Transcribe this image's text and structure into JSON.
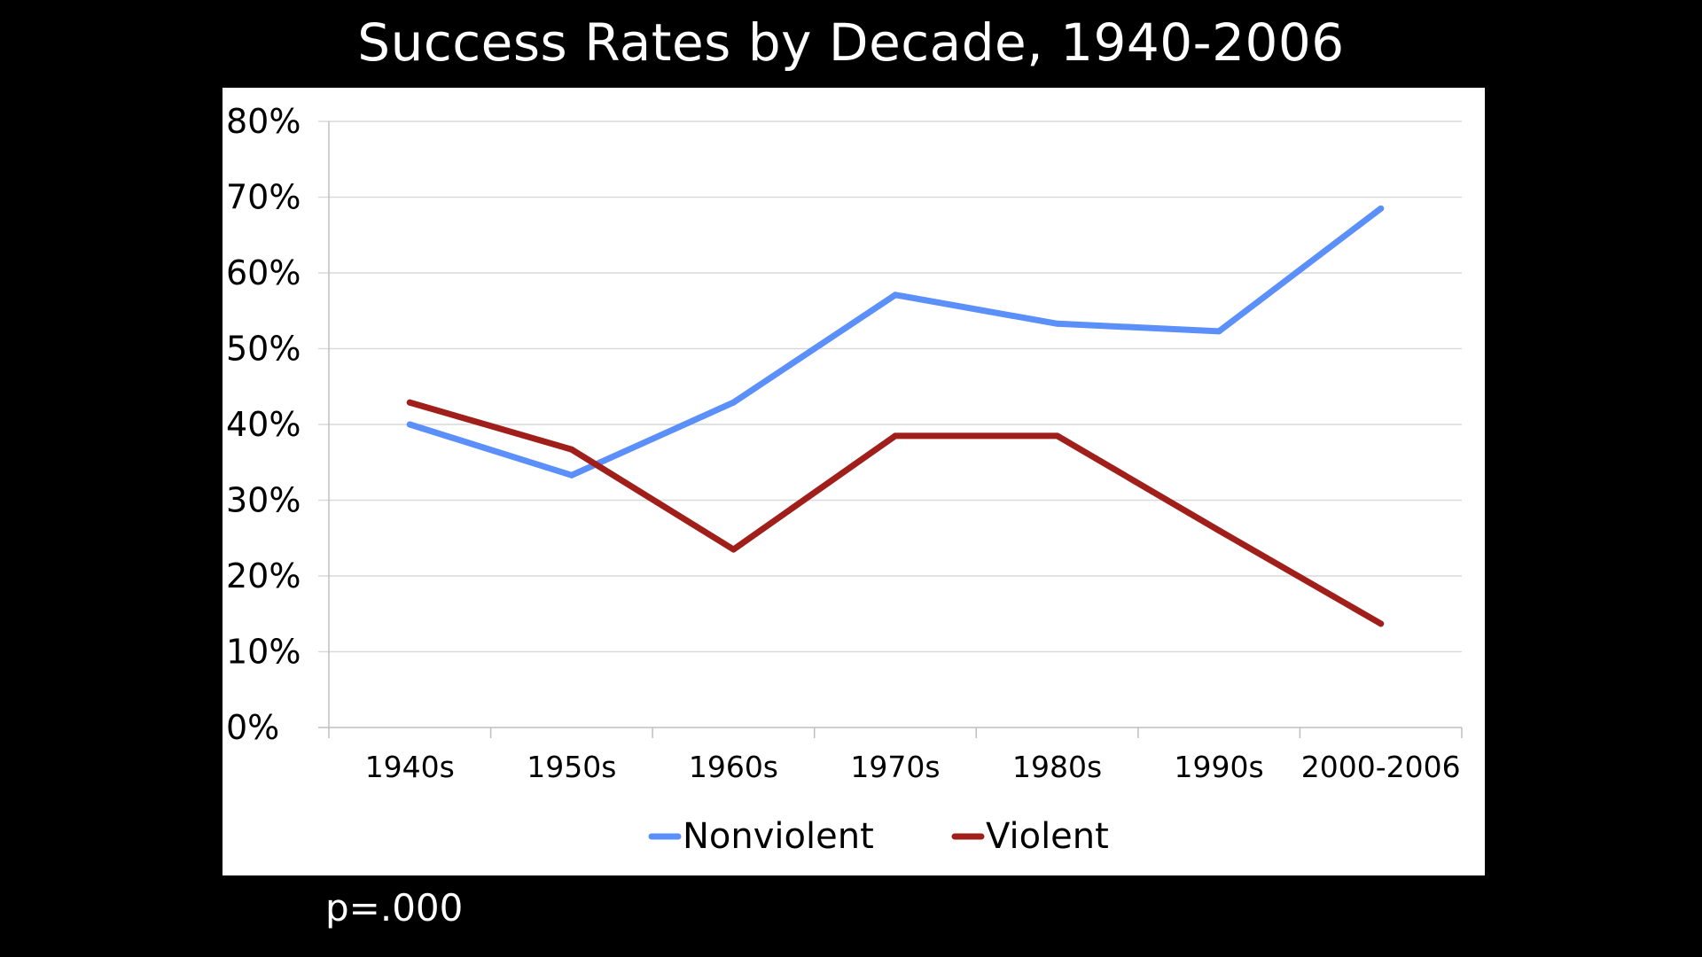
{
  "slide": {
    "title": "Success Rates by Decade, 1940-2006",
    "note": "p=.000"
  },
  "chart_data": {
    "type": "line",
    "title": "Success Rates by Decade, 1940-2006",
    "xlabel": "",
    "ylabel": "",
    "categories": [
      "1940s",
      "1950s",
      "1960s",
      "1970s",
      "1980s",
      "1990s",
      "2000-2006"
    ],
    "ylim": [
      0,
      80
    ],
    "yticks": [
      0,
      10,
      20,
      30,
      40,
      50,
      60,
      70,
      80
    ],
    "ytick_labels": [
      "0%",
      "10%",
      "20%",
      "30%",
      "40%",
      "50%",
      "60%",
      "70%",
      "80%"
    ],
    "grid": true,
    "legend_position": "bottom",
    "series": [
      {
        "name": "Nonviolent",
        "color": "#5b8ff9",
        "values": [
          40,
          33.3,
          42.9,
          57.1,
          53.3,
          52.3,
          68.5
        ]
      },
      {
        "name": "Violent",
        "color": "#a01f1b",
        "values": [
          42.9,
          36.7,
          23.5,
          38.5,
          38.5,
          26,
          13.7
        ]
      }
    ],
    "annotation": "p=.000"
  }
}
